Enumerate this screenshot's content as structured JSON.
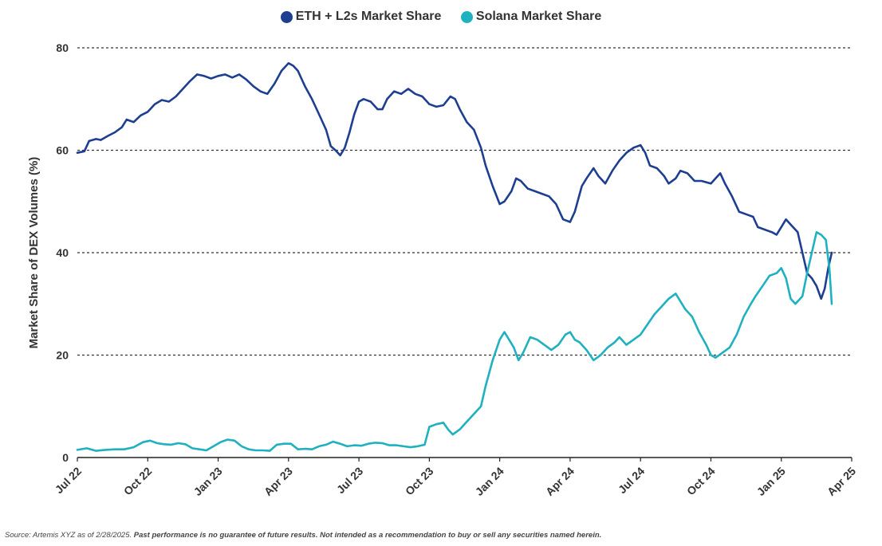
{
  "chart_data": {
    "type": "line",
    "title": "",
    "xlabel": "",
    "ylabel": "Market Share of DEX Volumes (%)",
    "ylim": [
      0,
      80
    ],
    "yticks": [
      0,
      20,
      40,
      60,
      80
    ],
    "x_range_months": [
      0,
      33
    ],
    "x_ticks": [
      {
        "month": 0,
        "label": "Jul 22"
      },
      {
        "month": 3,
        "label": "Oct 22"
      },
      {
        "month": 6,
        "label": "Jan 23"
      },
      {
        "month": 9,
        "label": "Apr 23"
      },
      {
        "month": 12,
        "label": "Jul 23"
      },
      {
        "month": 15,
        "label": "Oct 23"
      },
      {
        "month": 18,
        "label": "Jan 24"
      },
      {
        "month": 21,
        "label": "Apr 24"
      },
      {
        "month": 24,
        "label": "Jul 24"
      },
      {
        "month": 27,
        "label": "Oct 24"
      },
      {
        "month": 30,
        "label": "Jan 25"
      },
      {
        "month": 33,
        "label": "Apr 25"
      }
    ],
    "legend_position": "top-center",
    "series": [
      {
        "name": "ETH + L2s Market Share",
        "color": "#1e3f8f",
        "points": [
          [
            0.0,
            59.5
          ],
          [
            0.3,
            59.8
          ],
          [
            0.5,
            61.8
          ],
          [
            0.8,
            62.2
          ],
          [
            1.0,
            62.0
          ],
          [
            1.3,
            62.8
          ],
          [
            1.6,
            63.5
          ],
          [
            1.9,
            64.5
          ],
          [
            2.1,
            66.0
          ],
          [
            2.4,
            65.5
          ],
          [
            2.7,
            66.8
          ],
          [
            3.0,
            67.5
          ],
          [
            3.3,
            69.0
          ],
          [
            3.6,
            69.8
          ],
          [
            3.9,
            69.5
          ],
          [
            4.2,
            70.5
          ],
          [
            4.5,
            72.0
          ],
          [
            4.8,
            73.5
          ],
          [
            5.1,
            74.8
          ],
          [
            5.4,
            74.5
          ],
          [
            5.7,
            74.0
          ],
          [
            6.0,
            74.5
          ],
          [
            6.3,
            74.8
          ],
          [
            6.6,
            74.2
          ],
          [
            6.9,
            74.8
          ],
          [
            7.2,
            73.8
          ],
          [
            7.5,
            72.5
          ],
          [
            7.8,
            71.5
          ],
          [
            8.1,
            71.0
          ],
          [
            8.4,
            73.0
          ],
          [
            8.7,
            75.5
          ],
          [
            9.0,
            77.0
          ],
          [
            9.2,
            76.5
          ],
          [
            9.4,
            75.5
          ],
          [
            9.7,
            72.5
          ],
          [
            10.0,
            70.0
          ],
          [
            10.3,
            67.0
          ],
          [
            10.6,
            64.0
          ],
          [
            10.8,
            60.8
          ],
          [
            11.0,
            60.0
          ],
          [
            11.2,
            59.0
          ],
          [
            11.4,
            60.5
          ],
          [
            11.6,
            63.5
          ],
          [
            11.8,
            67.0
          ],
          [
            12.0,
            69.5
          ],
          [
            12.2,
            70.0
          ],
          [
            12.5,
            69.5
          ],
          [
            12.8,
            68.0
          ],
          [
            13.0,
            68.0
          ],
          [
            13.2,
            70.0
          ],
          [
            13.5,
            71.5
          ],
          [
            13.8,
            71.0
          ],
          [
            14.1,
            72.0
          ],
          [
            14.4,
            71.0
          ],
          [
            14.7,
            70.5
          ],
          [
            15.0,
            69.0
          ],
          [
            15.3,
            68.5
          ],
          [
            15.6,
            68.8
          ],
          [
            15.9,
            70.5
          ],
          [
            16.1,
            70.0
          ],
          [
            16.3,
            68.0
          ],
          [
            16.6,
            65.5
          ],
          [
            16.9,
            64.0
          ],
          [
            17.2,
            60.5
          ],
          [
            17.4,
            57.0
          ],
          [
            17.7,
            53.0
          ],
          [
            18.0,
            49.5
          ],
          [
            18.2,
            50.0
          ],
          [
            18.5,
            52.0
          ],
          [
            18.7,
            54.5
          ],
          [
            18.9,
            54.0
          ],
          [
            19.2,
            52.5
          ],
          [
            19.5,
            52.0
          ],
          [
            19.8,
            51.5
          ],
          [
            20.1,
            51.0
          ],
          [
            20.4,
            49.5
          ],
          [
            20.7,
            46.5
          ],
          [
            21.0,
            46.0
          ],
          [
            21.2,
            48.0
          ],
          [
            21.5,
            53.0
          ],
          [
            21.7,
            54.5
          ],
          [
            22.0,
            56.5
          ],
          [
            22.2,
            55.0
          ],
          [
            22.5,
            53.5
          ],
          [
            22.8,
            56.0
          ],
          [
            23.1,
            58.0
          ],
          [
            23.4,
            59.5
          ],
          [
            23.7,
            60.5
          ],
          [
            24.0,
            61.0
          ],
          [
            24.2,
            59.5
          ],
          [
            24.4,
            57.0
          ],
          [
            24.7,
            56.5
          ],
          [
            25.0,
            55.0
          ],
          [
            25.2,
            53.5
          ],
          [
            25.5,
            54.5
          ],
          [
            25.7,
            56.0
          ],
          [
            26.0,
            55.5
          ],
          [
            26.3,
            54.0
          ],
          [
            26.6,
            54.0
          ],
          [
            27.0,
            53.5
          ],
          [
            27.2,
            54.5
          ],
          [
            27.4,
            55.5
          ],
          [
            27.6,
            53.5
          ],
          [
            27.9,
            51.0
          ],
          [
            28.2,
            48.0
          ],
          [
            28.5,
            47.5
          ],
          [
            28.8,
            47.0
          ],
          [
            29.0,
            45.0
          ],
          [
            29.3,
            44.5
          ],
          [
            29.6,
            44.0
          ],
          [
            29.8,
            43.5
          ],
          [
            30.0,
            45.0
          ],
          [
            30.2,
            46.5
          ],
          [
            30.4,
            45.5
          ],
          [
            30.7,
            44.0
          ],
          [
            30.9,
            40.0
          ],
          [
            31.0,
            38.0
          ],
          [
            31.1,
            36.0
          ],
          [
            31.3,
            35.0
          ],
          [
            31.5,
            33.5
          ],
          [
            31.7,
            31.0
          ],
          [
            31.85,
            33.0
          ],
          [
            32.0,
            37.0
          ],
          [
            32.15,
            40.0
          ]
        ]
      },
      {
        "name": "Solana Market Share",
        "color": "#1fb1bf",
        "points": [
          [
            0.0,
            1.5
          ],
          [
            0.4,
            1.8
          ],
          [
            0.8,
            1.3
          ],
          [
            1.2,
            1.5
          ],
          [
            1.6,
            1.6
          ],
          [
            2.0,
            1.6
          ],
          [
            2.4,
            2.0
          ],
          [
            2.8,
            3.0
          ],
          [
            3.1,
            3.3
          ],
          [
            3.4,
            2.8
          ],
          [
            3.7,
            2.6
          ],
          [
            4.0,
            2.5
          ],
          [
            4.3,
            2.8
          ],
          [
            4.6,
            2.6
          ],
          [
            4.9,
            1.8
          ],
          [
            5.2,
            1.6
          ],
          [
            5.5,
            1.4
          ],
          [
            5.8,
            2.2
          ],
          [
            6.1,
            3.0
          ],
          [
            6.4,
            3.5
          ],
          [
            6.7,
            3.3
          ],
          [
            7.0,
            2.2
          ],
          [
            7.3,
            1.6
          ],
          [
            7.6,
            1.4
          ],
          [
            7.9,
            1.4
          ],
          [
            8.2,
            1.3
          ],
          [
            8.5,
            2.5
          ],
          [
            8.8,
            2.7
          ],
          [
            9.1,
            2.7
          ],
          [
            9.4,
            1.6
          ],
          [
            9.7,
            1.7
          ],
          [
            10.0,
            1.6
          ],
          [
            10.3,
            2.2
          ],
          [
            10.6,
            2.5
          ],
          [
            10.9,
            3.1
          ],
          [
            11.2,
            2.7
          ],
          [
            11.5,
            2.2
          ],
          [
            11.8,
            2.4
          ],
          [
            12.1,
            2.3
          ],
          [
            12.4,
            2.7
          ],
          [
            12.7,
            2.9
          ],
          [
            13.0,
            2.8
          ],
          [
            13.3,
            2.4
          ],
          [
            13.6,
            2.4
          ],
          [
            13.9,
            2.2
          ],
          [
            14.2,
            2.0
          ],
          [
            14.5,
            2.2
          ],
          [
            14.8,
            2.5
          ],
          [
            15.0,
            6.0
          ],
          [
            15.3,
            6.5
          ],
          [
            15.6,
            6.8
          ],
          [
            15.8,
            5.5
          ],
          [
            16.0,
            4.5
          ],
          [
            16.3,
            5.5
          ],
          [
            16.6,
            7.0
          ],
          [
            16.9,
            8.5
          ],
          [
            17.2,
            10.0
          ],
          [
            17.4,
            14.0
          ],
          [
            17.7,
            19.0
          ],
          [
            18.0,
            23.0
          ],
          [
            18.2,
            24.5
          ],
          [
            18.4,
            23.0
          ],
          [
            18.6,
            21.5
          ],
          [
            18.8,
            19.0
          ],
          [
            19.0,
            20.5
          ],
          [
            19.3,
            23.5
          ],
          [
            19.6,
            23.0
          ],
          [
            19.9,
            22.0
          ],
          [
            20.2,
            21.0
          ],
          [
            20.5,
            22.0
          ],
          [
            20.8,
            24.0
          ],
          [
            21.0,
            24.5
          ],
          [
            21.2,
            23.0
          ],
          [
            21.4,
            22.5
          ],
          [
            21.7,
            21.0
          ],
          [
            22.0,
            19.0
          ],
          [
            22.3,
            20.0
          ],
          [
            22.6,
            21.5
          ],
          [
            22.9,
            22.5
          ],
          [
            23.1,
            23.5
          ],
          [
            23.4,
            22.0
          ],
          [
            23.7,
            23.0
          ],
          [
            24.0,
            24.0
          ],
          [
            24.3,
            26.0
          ],
          [
            24.6,
            28.0
          ],
          [
            24.9,
            29.5
          ],
          [
            25.2,
            31.0
          ],
          [
            25.5,
            32.0
          ],
          [
            25.7,
            30.5
          ],
          [
            25.9,
            29.0
          ],
          [
            26.2,
            27.5
          ],
          [
            26.5,
            24.5
          ],
          [
            26.8,
            22.0
          ],
          [
            27.0,
            20.0
          ],
          [
            27.2,
            19.5
          ],
          [
            27.5,
            20.5
          ],
          [
            27.8,
            21.5
          ],
          [
            28.1,
            24.0
          ],
          [
            28.4,
            27.5
          ],
          [
            28.7,
            30.0
          ],
          [
            28.9,
            31.5
          ],
          [
            29.2,
            33.5
          ],
          [
            29.5,
            35.5
          ],
          [
            29.8,
            36.0
          ],
          [
            30.0,
            37.0
          ],
          [
            30.2,
            35.0
          ],
          [
            30.4,
            31.0
          ],
          [
            30.6,
            30.0
          ],
          [
            30.9,
            31.5
          ],
          [
            31.1,
            36.0
          ],
          [
            31.3,
            40.0
          ],
          [
            31.5,
            44.0
          ],
          [
            31.7,
            43.5
          ],
          [
            31.9,
            42.5
          ],
          [
            32.05,
            37.0
          ],
          [
            32.15,
            30.0
          ]
        ]
      }
    ]
  },
  "source_note": "Source: Artemis XYZ as of 2/28/2025.",
  "disclaimer": "Past performance is no guarantee of future results. Not intended as a recommendation to buy or sell any securities named herein."
}
